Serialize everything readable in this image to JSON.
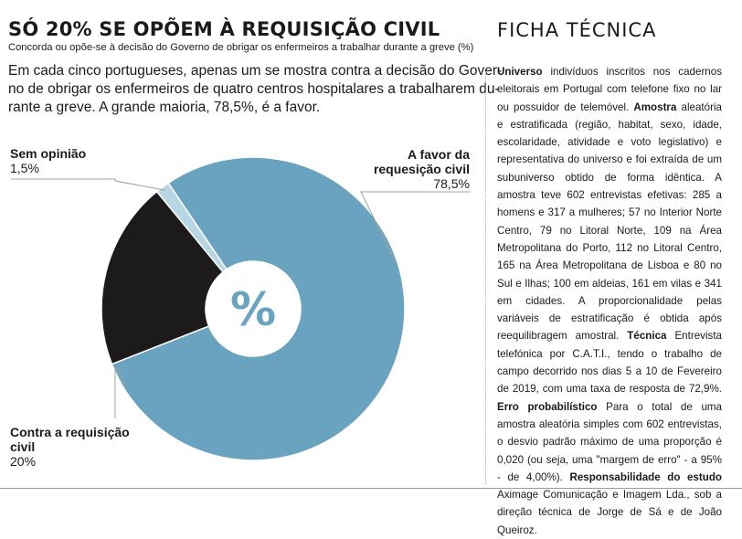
{
  "header": {
    "title": "SÓ 20% SE OPÕEM À REQUISIÇÃO CIVIL",
    "subtitle": "Concorda ou opõe-se à decisão do Governo de obrigar os enfermeiros a trabalhar durante a greve (%)"
  },
  "lead_lines": [
    "Em cada cinco portugueses, apenas um se mostra contra a decisão do Gover-",
    "no de obrigar os enfermeiros de quatro centros hospitalares a trabalharem du-",
    "rante a greve. A grande maioria, 78,5%, é a favor."
  ],
  "chart_data": {
    "type": "pie",
    "center_label": "%",
    "slices": [
      {
        "label_lines": [
          "A favor da",
          "requesição civil"
        ],
        "value": 78.5,
        "value_label": "78,5%",
        "color": "#6aa3bf"
      },
      {
        "label_lines": [
          "Contra a requisição",
          "civil"
        ],
        "value": 20,
        "value_label": "20%",
        "color": "#1d1a1b"
      },
      {
        "label_lines": [
          "Sem opinião"
        ],
        "value": 1.5,
        "value_label": "1,5%",
        "color": "#b9d6e4"
      }
    ],
    "legend": "none",
    "grid": false
  },
  "ficha": {
    "title": "FICHA TÉCNICA",
    "sections": [
      {
        "term": "Universo",
        "text": " indivíduos inscritos nos cadernos eleitorais em Portugal com telefone fixo no lar ou possuidor de telemóvel. "
      },
      {
        "term": "Amostra",
        "text": " aleatória e estratificada (região, habitat, sexo, idade, escolaridade, atividade e voto legislativo) e representativa do universo e foi extraída de um subuniverso obtido de forma idêntica. A amostra teve 602 entrevistas efetivas: 285 a homens e 317 a mulheres; 57 no Interior Norte Centro, 79 no Litoral Norte, 109 na Área Metropolitana do Porto, 112 no Litoral Centro, 165 na Área Metropolitana de Lisboa e 80 no Sul e Ilhas; 100 em aldeias, 161 em vilas e 341 em cidades. A proporcionalidade pelas variáveis de estratificação é obtida após reequilibragem amostral. "
      },
      {
        "term": "Técnica",
        "text": " Entrevista telefónica por C.A.T.I., tendo o trabalho de campo decorrido nos dias 5 a 10 de Fevereiro de 2019, com uma taxa de resposta de 72,9%. "
      },
      {
        "term": "Erro probabilístico",
        "text": " Para o total de uma amostra aleatória simples com 602 entrevistas, o desvio padrão máximo de uma proporção é 0,020 (ou seja, uma \"margem de erro\" - a 95% - de 4,00%). "
      },
      {
        "term": "Responsabilidade do estudo",
        "text": " Aximage Comunicação e Imagem Lda., sob a direção técnica de Jorge de Sá e de João Queiroz."
      }
    ]
  }
}
